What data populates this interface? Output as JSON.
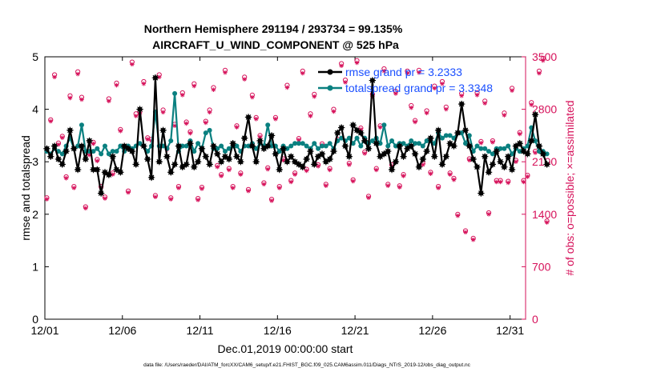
{
  "chart_data": {
    "type": "line",
    "title_line1": "Northern Hemisphere 291194 / 293734 = 99.135%",
    "title_line2": "AIRCRAFT_U_WIND_COMPONENT @ 525 hPa",
    "xlabel": "Dec.01,2019 00:00:00 start",
    "ylabel_left": "rmse and totalspread",
    "ylabel_right": "# of obs: o=possible; ×=assimilated",
    "footer": "data file: /Users/raeder/DAI/ATM_forcXX/CAM6_setup/f.e21.FHIST_BGC.f09_025.CAM6assim.011/Diags_NTrS_2019-12/obs_diag_output.nc",
    "x_ticks": [
      {
        "value": 1,
        "label": "12/01"
      },
      {
        "value": 6,
        "label": "12/06"
      },
      {
        "value": 11,
        "label": "12/11"
      },
      {
        "value": 16,
        "label": "12/16"
      },
      {
        "value": 21,
        "label": "12/21"
      },
      {
        "value": 26,
        "label": "12/26"
      },
      {
        "value": 31,
        "label": "12/31"
      }
    ],
    "xlim": [
      1,
      32
    ],
    "ylim_left": [
      0,
      5
    ],
    "yticks_left": [
      0,
      1,
      2,
      3,
      4,
      5
    ],
    "ylim_right": [
      0,
      3500
    ],
    "yticks_right": [
      0,
      700,
      1400,
      2100,
      2800,
      3500
    ],
    "x_step_days": 0.25,
    "x_start": 1.125,
    "legend": [
      {
        "label": "rmse grand pr = 3.2333",
        "series": "rmse"
      },
      {
        "label": "totalspread grand pr = 3.3348",
        "series": "totalspread"
      }
    ],
    "colors": {
      "rmse": "#000000",
      "totalspread": "#0a8080",
      "obs": "#d6115a",
      "legend_text": "#1a4fff"
    },
    "series": [
      {
        "name": "rmse",
        "axis": "left",
        "values": [
          3.25,
          3.1,
          3.3,
          3.05,
          2.95,
          3.2,
          3.6,
          3.25,
          2.85,
          3.3,
          3.05,
          3.4,
          2.85,
          2.85,
          2.4,
          2.8,
          2.75,
          3.1,
          2.85,
          2.8,
          3.3,
          3.25,
          3.2,
          2.95,
          4.0,
          3.3,
          3.05,
          2.7,
          4.6,
          3.0,
          3.6,
          3.1,
          2.8,
          2.95,
          3.3,
          2.9,
          2.95,
          3.35,
          2.9,
          3.0,
          3.25,
          3.1,
          2.95,
          3.3,
          3.15,
          3.0,
          3.1,
          3.05,
          3.35,
          3.1,
          3.0,
          3.45,
          3.85,
          3.3,
          3.0,
          3.4,
          3.25,
          3.3,
          3.5,
          3.15,
          2.85,
          3.25,
          3.0,
          3.1,
          3.0,
          2.95,
          2.9,
          3.05,
          3.2,
          2.95,
          3.1,
          3.15,
          3.0,
          3.05,
          3.2,
          3.55,
          3.65,
          3.3,
          3.1,
          3.7,
          3.6,
          3.55,
          3.4,
          3.25,
          4.55,
          3.35,
          3.1,
          3.15,
          3.2,
          2.85,
          3.0,
          3.3,
          3.1,
          3.25,
          3.3,
          3.15,
          2.9,
          3.05,
          3.2,
          3.45,
          3.1,
          3.6,
          2.95,
          3.1,
          3.35,
          3.3,
          3.55,
          4.1,
          3.6,
          3.3,
          3.05,
          2.9,
          2.4,
          3.1,
          2.8,
          2.95,
          3.2,
          3.0,
          2.9,
          3.1,
          2.85,
          3.3,
          3.35,
          3.2,
          3.15,
          3.4,
          3.9,
          3.3,
          3.15,
          2.95
        ]
      },
      {
        "name": "totalspread",
        "axis": "left",
        "values": [
          3.2,
          3.15,
          3.25,
          3.2,
          3.15,
          3.3,
          3.45,
          3.25,
          3.3,
          3.7,
          3.2,
          3.2,
          3.2,
          3.25,
          3.15,
          3.3,
          3.15,
          3.2,
          3.2,
          3.3,
          3.2,
          3.3,
          3.25,
          3.3,
          3.35,
          3.3,
          3.2,
          3.3,
          3.95,
          3.3,
          3.3,
          3.25,
          3.4,
          4.3,
          3.2,
          3.3,
          3.3,
          3.4,
          3.2,
          3.35,
          3.25,
          3.55,
          3.6,
          3.25,
          3.25,
          3.3,
          3.2,
          3.25,
          3.3,
          3.3,
          3.2,
          3.3,
          3.3,
          3.35,
          3.25,
          3.35,
          3.3,
          3.7,
          3.3,
          3.3,
          3.2,
          3.3,
          3.25,
          3.3,
          3.35,
          3.35,
          3.35,
          3.3,
          3.25,
          3.35,
          3.25,
          3.3,
          3.3,
          3.35,
          3.25,
          3.4,
          3.45,
          3.4,
          3.45,
          3.35,
          3.45,
          3.3,
          3.45,
          3.35,
          3.4,
          3.45,
          3.35,
          3.7,
          3.3,
          3.4,
          3.3,
          3.35,
          3.35,
          3.3,
          3.4,
          3.35,
          3.35,
          3.3,
          3.4,
          3.4,
          3.35,
          3.55,
          3.45,
          3.5,
          3.5,
          3.45,
          3.55,
          3.55,
          3.35,
          3.5,
          3.2,
          3.3,
          3.25,
          3.25,
          3.2,
          3.15,
          3.25,
          3.25,
          3.25,
          3.3,
          3.15,
          3.25,
          3.2,
          3.25,
          3.3,
          3.65,
          3.4,
          3.2,
          3.2,
          3.15
        ]
      },
      {
        "name": "possible_obs",
        "axis": "right",
        "marker": "o",
        "values": [
          1620,
          2660,
          3260,
          2350,
          2440,
          1900,
          2980,
          1770,
          3300,
          2960,
          1500,
          2210,
          2360,
          2130,
          1770,
          1630,
          2940,
          1950,
          3150,
          2530,
          2300,
          1710,
          3430,
          2740,
          2770,
          3170,
          2420,
          2400,
          1650,
          3260,
          2790,
          2280,
          1620,
          2600,
          1770,
          3020,
          2630,
          2500,
          3140,
          1610,
          1760,
          2640,
          2790,
          3090,
          2050,
          1930,
          3320,
          2010,
          1770,
          2580,
          1950,
          3230,
          1730,
          2990,
          2690,
          2450,
          1820,
          2020,
          1600,
          2690,
          1770,
          2140,
          3120,
          1850,
          1950,
          2410,
          3310,
          2000,
          2740,
          3000,
          2060,
          2340,
          1800,
          2010,
          2800,
          2400,
          3410,
          3190,
          2080,
          1860,
          3450,
          2550,
          2230,
          1640,
          3000,
          2010,
          2580,
          3340,
          1800,
          2060,
          3040,
          1780,
          1930,
          3310,
          2850,
          2650,
          3320,
          2080,
          2780,
          1960,
          3110,
          1770,
          3170,
          2830,
          1950,
          1880,
          1400,
          3010,
          1180,
          2140,
          1080,
          3020,
          2370,
          2910,
          1420,
          2380,
          1850,
          1850,
          2750,
          1840,
          3080,
          2120,
          2490,
          1850,
          1920,
          2890,
          2240,
          3310,
          3480,
          1310
        ]
      },
      {
        "name": "assimilated_obs",
        "axis": "right",
        "marker": "x",
        "values": [
          1600,
          2640,
          3230,
          2330,
          2420,
          1880,
          2950,
          1750,
          3270,
          2930,
          1480,
          2190,
          2340,
          2110,
          1750,
          1610,
          2910,
          1930,
          3120,
          2510,
          2280,
          1690,
          3400,
          2710,
          2740,
          3140,
          2400,
          2380,
          1630,
          3230,
          2760,
          2260,
          1600,
          2580,
          1750,
          2990,
          2610,
          2480,
          3110,
          1590,
          1740,
          2620,
          2760,
          3060,
          2030,
          1910,
          3290,
          1990,
          1750,
          2560,
          1930,
          3200,
          1710,
          2960,
          2670,
          2430,
          1800,
          2000,
          1580,
          2670,
          1750,
          2120,
          3090,
          1830,
          1930,
          2390,
          3280,
          1980,
          2710,
          2970,
          2040,
          2320,
          1780,
          1990,
          2770,
          2380,
          3380,
          3160,
          2060,
          1840,
          3420,
          2530,
          2210,
          1620,
          2970,
          1990,
          2560,
          3310,
          1780,
          2040,
          3010,
          1760,
          1910,
          3280,
          2820,
          2630,
          3290,
          2060,
          2750,
          1940,
          3080,
          1750,
          3140,
          2800,
          1930,
          1860,
          1380,
          2980,
          1160,
          2120,
          1060,
          2990,
          2350,
          2880,
          1400,
          2360,
          1830,
          1830,
          2720,
          1820,
          3050,
          2100,
          2470,
          1830,
          1900,
          2860,
          2220,
          3280,
          3450,
          1290
        ]
      }
    ]
  }
}
